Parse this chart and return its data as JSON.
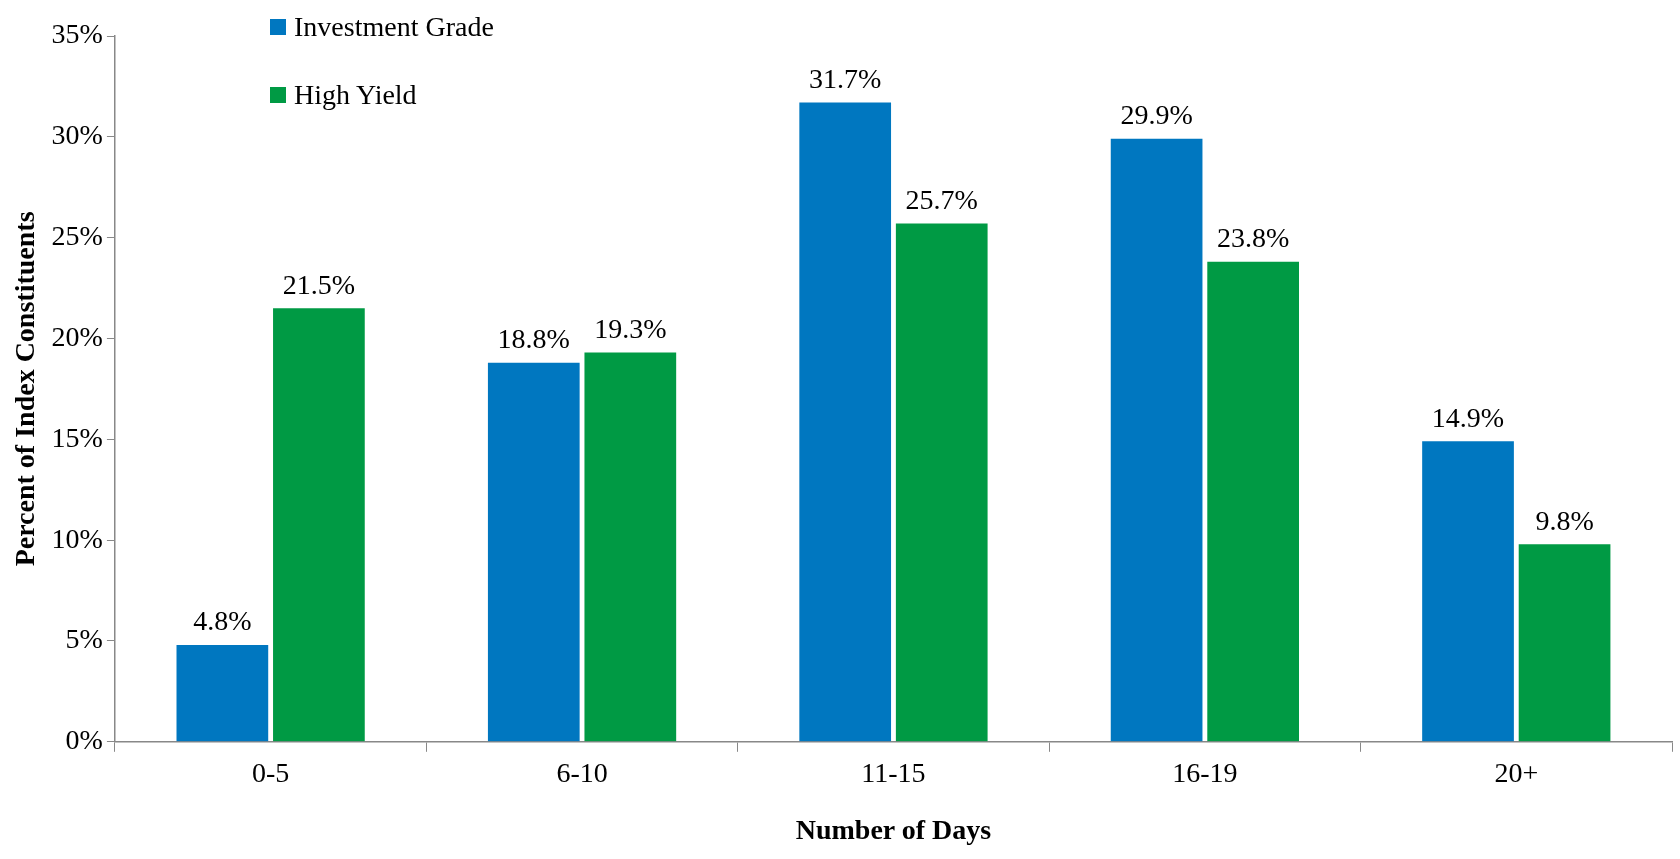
{
  "chart_data": {
    "type": "bar",
    "xlabel": "Number of Days",
    "ylabel": "Percent of Index Constituents",
    "categories": [
      "0-5",
      "6-10",
      "11-15",
      "16-19",
      "20+"
    ],
    "series": [
      {
        "name": "Investment Grade",
        "color": "#0077c0",
        "values": [
          4.8,
          18.8,
          31.7,
          29.9,
          14.9
        ],
        "value_labels": [
          "4.8%",
          "18.8%",
          "31.7%",
          "29.9%",
          "14.9%"
        ]
      },
      {
        "name": "High Yield",
        "color": "#009a44",
        "values": [
          21.5,
          19.3,
          25.7,
          23.8,
          9.8
        ],
        "value_labels": [
          "21.5%",
          "19.3%",
          "25.7%",
          "23.8%",
          "9.8%"
        ]
      }
    ],
    "ylim": [
      0,
      35
    ],
    "yticks": [
      {
        "value": 0,
        "label": "0%"
      },
      {
        "value": 5,
        "label": "5%"
      },
      {
        "value": 10,
        "label": "10%"
      },
      {
        "value": 15,
        "label": "15%"
      },
      {
        "value": 20,
        "label": "20%"
      },
      {
        "value": 25,
        "label": "25%"
      },
      {
        "value": 30,
        "label": "30%"
      },
      {
        "value": 35,
        "label": "35%"
      }
    ],
    "grid": false,
    "legend": "top left"
  }
}
